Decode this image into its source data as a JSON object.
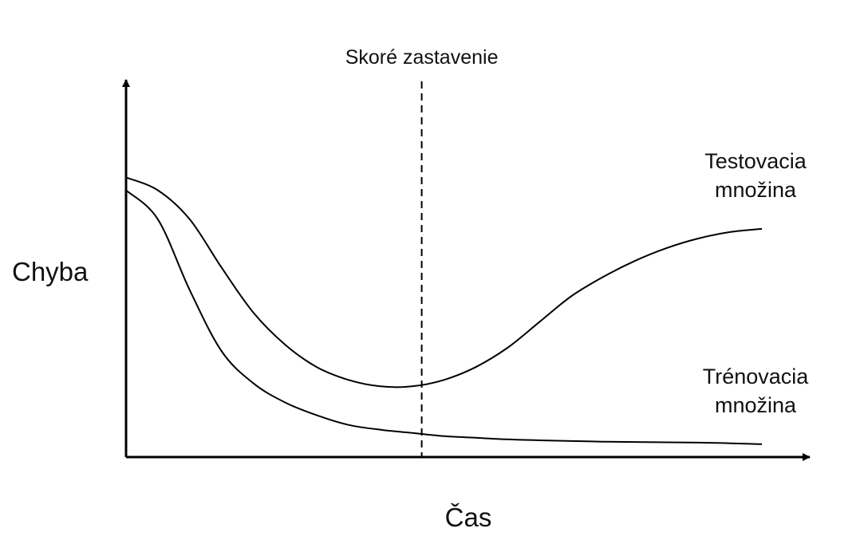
{
  "chart_data": {
    "type": "line",
    "title": "",
    "xlabel": "Čas",
    "ylabel": "Chyba",
    "grid": false,
    "xlim": [
      0,
      100
    ],
    "ylim": [
      0,
      100
    ],
    "x": [
      0,
      5,
      10,
      15,
      20,
      25,
      30,
      35,
      40,
      45,
      50,
      55,
      60,
      65,
      70,
      75,
      80,
      85,
      90,
      95,
      100
    ],
    "series": [
      {
        "name": "Testovacia množina",
        "values": [
          87,
          83,
          74,
          59,
          45,
          35,
          28,
          24,
          22,
          22,
          24,
          28,
          34,
          42,
          50,
          56,
          61,
          65,
          68,
          70,
          71
        ]
      },
      {
        "name": "Trénovacia množina",
        "values": [
          83,
          74,
          52,
          33,
          23,
          17,
          13,
          10,
          8.5,
          7.5,
          6.5,
          6,
          5.5,
          5.2,
          5,
          4.8,
          4.7,
          4.6,
          4.5,
          4.3,
          4
        ]
      }
    ],
    "annotations": [
      {
        "type": "vline",
        "x": 46.5,
        "style": "dashed",
        "label": "Skoré zastavenie"
      }
    ],
    "colors": {
      "line": "#000000",
      "axis": "#000000",
      "text": "#111111"
    }
  }
}
